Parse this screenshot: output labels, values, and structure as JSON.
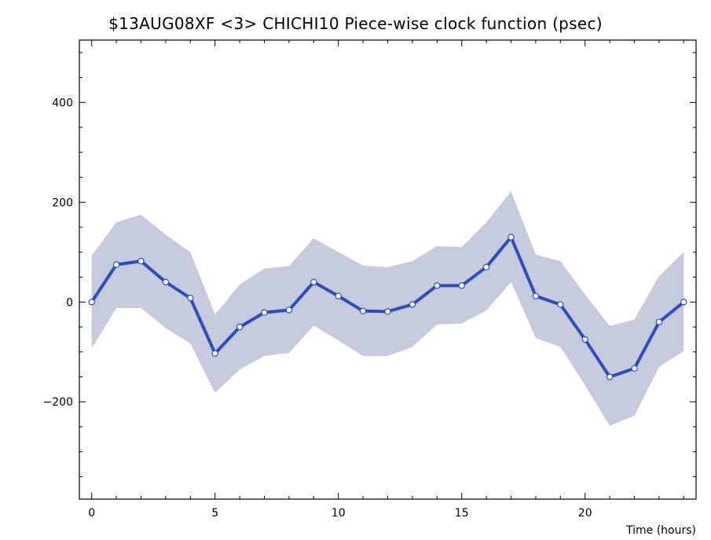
{
  "chart_data": {
    "type": "line",
    "title": "$13AUG08XF <3>  CHICHI10  Piece-wise clock function (psec)",
    "xlabel": "Time (hours)",
    "ylabel": "",
    "xlim": [
      -0.5,
      24.5
    ],
    "ylim": [
      -395,
      525
    ],
    "x_ticks": [
      0,
      5,
      10,
      15,
      20
    ],
    "y_ticks": [
      -200,
      0,
      200,
      400
    ],
    "grid": false,
    "colors": {
      "line": "#2e4dbd",
      "band": "#c5cadc",
      "marker_fill": "#ffffff"
    },
    "x": [
      0,
      1,
      2,
      3,
      4,
      5,
      6,
      7,
      8,
      9,
      10,
      11,
      12,
      13,
      14,
      15,
      16,
      17,
      18,
      19,
      20,
      21,
      22,
      23,
      24
    ],
    "series": [
      {
        "values": [
          0,
          75,
          82,
          40,
          8,
          -103,
          -50,
          -21,
          -16,
          40,
          12,
          -18,
          -19,
          -5,
          33,
          33,
          70,
          130,
          12,
          -5,
          -75,
          -150,
          -133,
          -40,
          0
        ],
        "band_upper": [
          93,
          160,
          175,
          135,
          100,
          -25,
          35,
          67,
          72,
          128,
          100,
          73,
          70,
          82,
          112,
          110,
          160,
          222,
          95,
          82,
          15,
          -48,
          -35,
          52,
          100
        ],
        "band_lower": [
          -93,
          -12,
          -12,
          -52,
          -83,
          -182,
          -135,
          -108,
          -102,
          -47,
          -77,
          -108,
          -108,
          -90,
          -45,
          -43,
          -17,
          40,
          -72,
          -90,
          -167,
          -248,
          -228,
          -130,
          -98
        ]
      }
    ]
  }
}
